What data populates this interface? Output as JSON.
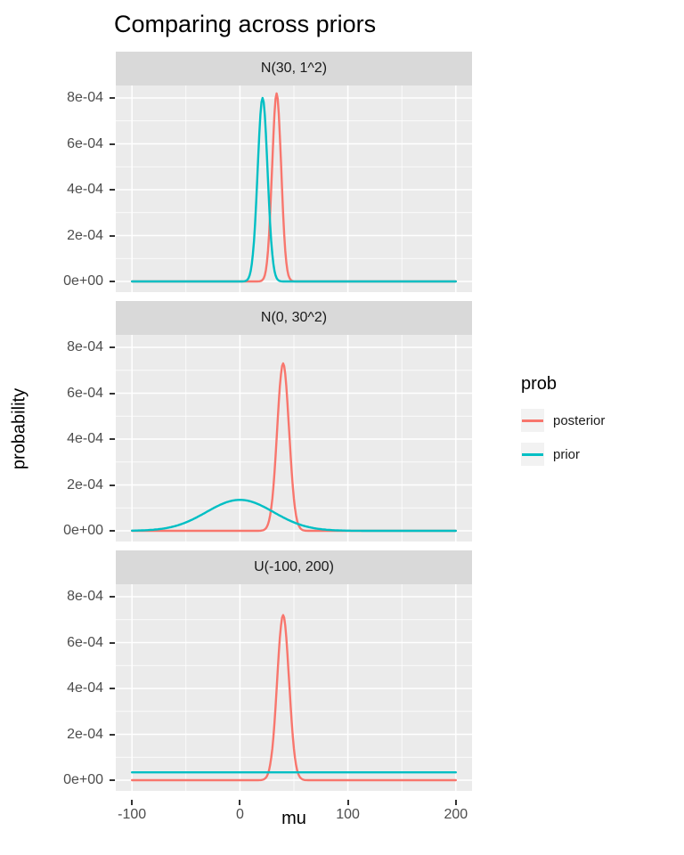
{
  "title": "Comparing across priors",
  "axes": {
    "xlabel": "mu",
    "ylabel": "probability",
    "x_ticks": [
      -100,
      0,
      100,
      200
    ],
    "x_tick_labels": [
      "-100",
      "0",
      "100",
      "200"
    ],
    "y_tick_values": [
      0,
      0.0002,
      0.0004,
      0.0006,
      0.0008
    ],
    "y_tick_labels": [
      "0e+00",
      "2e-04",
      "4e-04",
      "6e-04",
      "8e-04"
    ]
  },
  "legend": {
    "title": "prob",
    "entries": [
      {
        "label": "posterior",
        "color": "#F8766D"
      },
      {
        "label": "prior",
        "color": "#00BFC4"
      }
    ]
  },
  "colors": {
    "posterior": "#F8766D",
    "prior": "#00BFC4",
    "panel_background": "#EBEBEB",
    "strip_background": "#D9D9D9",
    "gridline": "#FFFFFF"
  },
  "chart_data": {
    "type": "line",
    "title": "Comparing across priors",
    "xlabel": "mu",
    "ylabel": "probability",
    "x_range": [
      -100,
      200
    ],
    "ylim": [
      0,
      0.0008
    ],
    "x_minor_ticks": [
      -50,
      50,
      150
    ],
    "y_minor_ticks": [
      0.0001,
      0.0003,
      0.0005,
      0.0007
    ],
    "grid": true,
    "legend_position": "right",
    "facets": [
      {
        "label": "N(30, 1^2)",
        "series": [
          {
            "name": "posterior",
            "color": "#F8766D",
            "shape": "gaussian",
            "center": 34,
            "sd": 4.2,
            "peak": 0.00082
          },
          {
            "name": "prior",
            "color": "#00BFC4",
            "shape": "gaussian",
            "center": 21,
            "sd": 4.6,
            "peak": 0.0008
          }
        ]
      },
      {
        "label": "N(0, 30^2)",
        "series": [
          {
            "name": "posterior",
            "color": "#F8766D",
            "shape": "gaussian",
            "center": 40,
            "sd": 5.5,
            "peak": 0.00073
          },
          {
            "name": "prior",
            "color": "#00BFC4",
            "shape": "gaussian",
            "center": 0,
            "sd": 31,
            "peak": 0.000135
          }
        ]
      },
      {
        "label": "U(-100, 200)",
        "series": [
          {
            "name": "posterior",
            "color": "#F8766D",
            "shape": "gaussian",
            "center": 40,
            "sd": 5.5,
            "peak": 0.00072
          },
          {
            "name": "prior",
            "color": "#00BFC4",
            "shape": "uniform",
            "level": 3.4e-05
          }
        ]
      }
    ]
  }
}
